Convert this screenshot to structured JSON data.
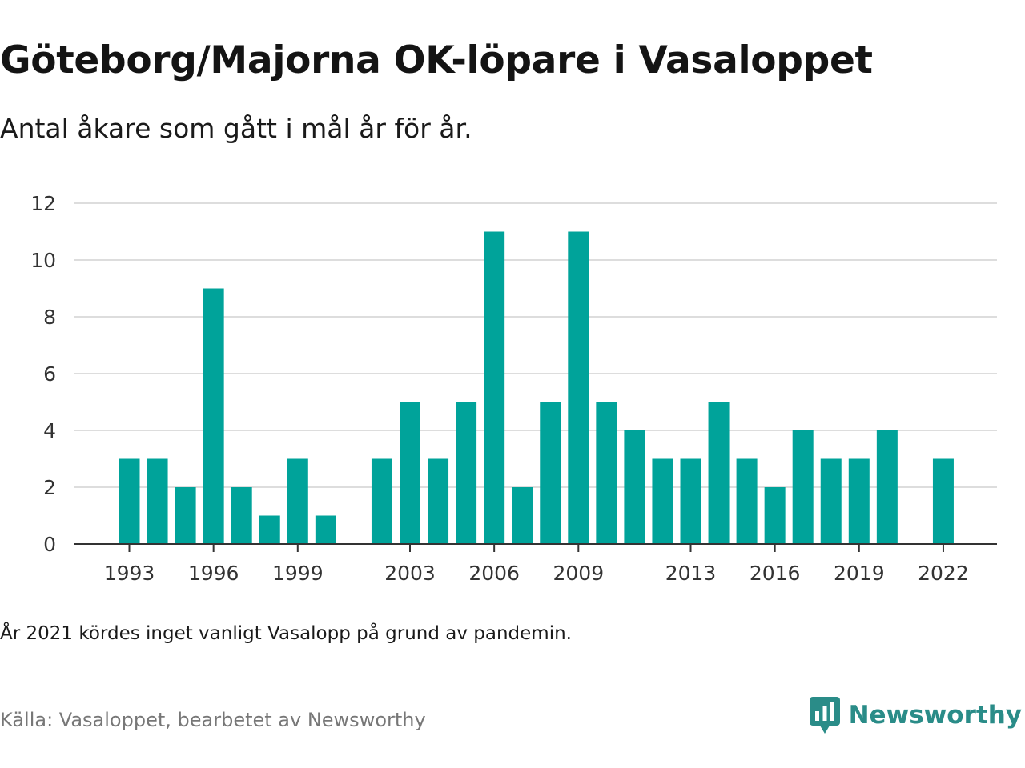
{
  "header": {
    "title": "Göteborg/Majorna OK-löpare i Vasaloppet",
    "subtitle": "Antal åkare som gått i mål år för år."
  },
  "footer": {
    "note": "År 2021 kördes inget vanligt Vasalopp på grund av pandemin.",
    "source": "Källa: Vasaloppet, bearbetet av Newsworthy",
    "brand": "Newsworthy",
    "brand_icon": "newsworthy-logo-icon"
  },
  "colors": {
    "bar": "#00a39a",
    "grid": "#dddddd",
    "axis": "#333333",
    "brand": "#2a8c88"
  },
  "chart_data": {
    "type": "bar",
    "title": "Göteborg/Majorna OK-löpare i Vasaloppet",
    "subtitle": "Antal åkare som gått i mål år för år.",
    "xlabel": "",
    "ylabel": "",
    "ylim": [
      0,
      12
    ],
    "yticks": [
      0,
      2,
      4,
      6,
      8,
      10,
      12
    ],
    "xticks": [
      1993,
      1996,
      1999,
      2003,
      2006,
      2009,
      2013,
      2016,
      2019,
      2022
    ],
    "grid": true,
    "categories": [
      1993,
      1994,
      1995,
      1996,
      1997,
      1998,
      1999,
      2000,
      2001,
      2002,
      2003,
      2004,
      2005,
      2006,
      2007,
      2008,
      2009,
      2010,
      2011,
      2012,
      2013,
      2014,
      2015,
      2016,
      2017,
      2018,
      2019,
      2020,
      2021,
      2022
    ],
    "values": [
      3,
      3,
      2,
      9,
      2,
      1,
      3,
      1,
      0,
      3,
      5,
      3,
      5,
      11,
      2,
      5,
      11,
      5,
      4,
      3,
      3,
      5,
      3,
      2,
      4,
      3,
      3,
      4,
      0,
      3
    ]
  }
}
